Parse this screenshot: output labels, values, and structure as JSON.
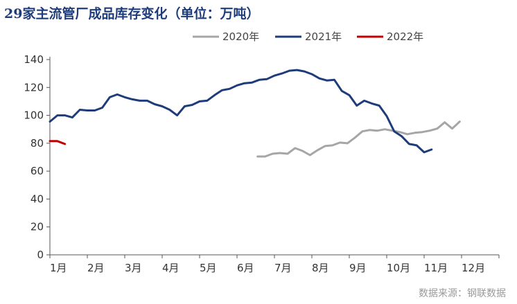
{
  "title": "29家主流管厂成品库存变化（单位：万吨）",
  "source": "数据来源：钢联数据",
  "chart_data": {
    "type": "line",
    "title": "29家主流管厂成品库存变化（单位：万吨）",
    "xlabel": "",
    "ylabel": "",
    "ylim": [
      0,
      140
    ],
    "yticks": [
      0,
      20,
      40,
      60,
      80,
      100,
      120,
      140
    ],
    "xlim": [
      1,
      13
    ],
    "xticks": [
      {
        "label": "1月",
        "x": 1
      },
      {
        "label": "2月",
        "x": 2
      },
      {
        "label": "3月",
        "x": 3
      },
      {
        "label": "4月",
        "x": 4
      },
      {
        "label": "5月",
        "x": 5
      },
      {
        "label": "6月",
        "x": 6
      },
      {
        "label": "7月",
        "x": 7
      },
      {
        "label": "8月",
        "x": 8
      },
      {
        "label": "9月",
        "x": 9
      },
      {
        "label": "10月",
        "x": 10
      },
      {
        "label": "11月",
        "x": 11
      },
      {
        "label": "12月",
        "x": 12
      }
    ],
    "grid": false,
    "legend": "top-right",
    "series": [
      {
        "name": "2020年",
        "color": "#a6a6a6",
        "points": [
          [
            6.55,
            70.5
          ],
          [
            6.75,
            70.5
          ],
          [
            6.95,
            72.5
          ],
          [
            7.15,
            73
          ],
          [
            7.35,
            72.5
          ],
          [
            7.55,
            76.5
          ],
          [
            7.75,
            74.5
          ],
          [
            7.95,
            71.5
          ],
          [
            8.15,
            75
          ],
          [
            8.35,
            78
          ],
          [
            8.55,
            78.5
          ],
          [
            8.75,
            80.5
          ],
          [
            8.95,
            80
          ],
          [
            9.15,
            84
          ],
          [
            9.35,
            88.5
          ],
          [
            9.55,
            89.5
          ],
          [
            9.75,
            89
          ],
          [
            9.95,
            90
          ],
          [
            10.15,
            89
          ],
          [
            10.35,
            88
          ],
          [
            10.55,
            86.5
          ],
          [
            10.75,
            87.5
          ],
          [
            10.95,
            88
          ],
          [
            11.15,
            89
          ],
          [
            11.35,
            90.5
          ],
          [
            11.55,
            95
          ],
          [
            11.75,
            90.5
          ],
          [
            11.95,
            95.5
          ]
        ]
      },
      {
        "name": "2021年",
        "color": "#1f3c7a",
        "points": [
          [
            1.0,
            95.5
          ],
          [
            1.2,
            100
          ],
          [
            1.4,
            100
          ],
          [
            1.6,
            98.5
          ],
          [
            1.8,
            104
          ],
          [
            2.0,
            103.5
          ],
          [
            2.2,
            103.5
          ],
          [
            2.4,
            105.5
          ],
          [
            2.6,
            113
          ],
          [
            2.8,
            115
          ],
          [
            3.0,
            113
          ],
          [
            3.2,
            111.5
          ],
          [
            3.4,
            110.5
          ],
          [
            3.6,
            110.5
          ],
          [
            3.8,
            108
          ],
          [
            4.0,
            106.5
          ],
          [
            4.2,
            104
          ],
          [
            4.4,
            100
          ],
          [
            4.6,
            106.5
          ],
          [
            4.8,
            107.5
          ],
          [
            5.0,
            110
          ],
          [
            5.2,
            110.5
          ],
          [
            5.4,
            114.5
          ],
          [
            5.6,
            118
          ],
          [
            5.8,
            119
          ],
          [
            6.0,
            121.5
          ],
          [
            6.2,
            123
          ],
          [
            6.4,
            123.5
          ],
          [
            6.6,
            125.5
          ],
          [
            6.8,
            126
          ],
          [
            7.0,
            128.5
          ],
          [
            7.2,
            130
          ],
          [
            7.4,
            132
          ],
          [
            7.6,
            132.5
          ],
          [
            7.8,
            131.5
          ],
          [
            8.0,
            129.5
          ],
          [
            8.2,
            126.5
          ],
          [
            8.4,
            125
          ],
          [
            8.6,
            125.5
          ],
          [
            8.8,
            117.5
          ],
          [
            9.0,
            114.5
          ],
          [
            9.2,
            107
          ],
          [
            9.4,
            110.5
          ],
          [
            9.6,
            108.5
          ],
          [
            9.8,
            107
          ],
          [
            10.0,
            99.5
          ],
          [
            10.2,
            88.5
          ],
          [
            10.4,
            85
          ],
          [
            10.6,
            79.5
          ],
          [
            10.8,
            78.5
          ],
          [
            11.0,
            73.5
          ],
          [
            11.2,
            75.5
          ]
        ]
      },
      {
        "name": "2022年",
        "color": "#c00000",
        "points": [
          [
            1.0,
            81.5
          ],
          [
            1.2,
            81.5
          ],
          [
            1.4,
            79.5
          ]
        ]
      }
    ]
  }
}
